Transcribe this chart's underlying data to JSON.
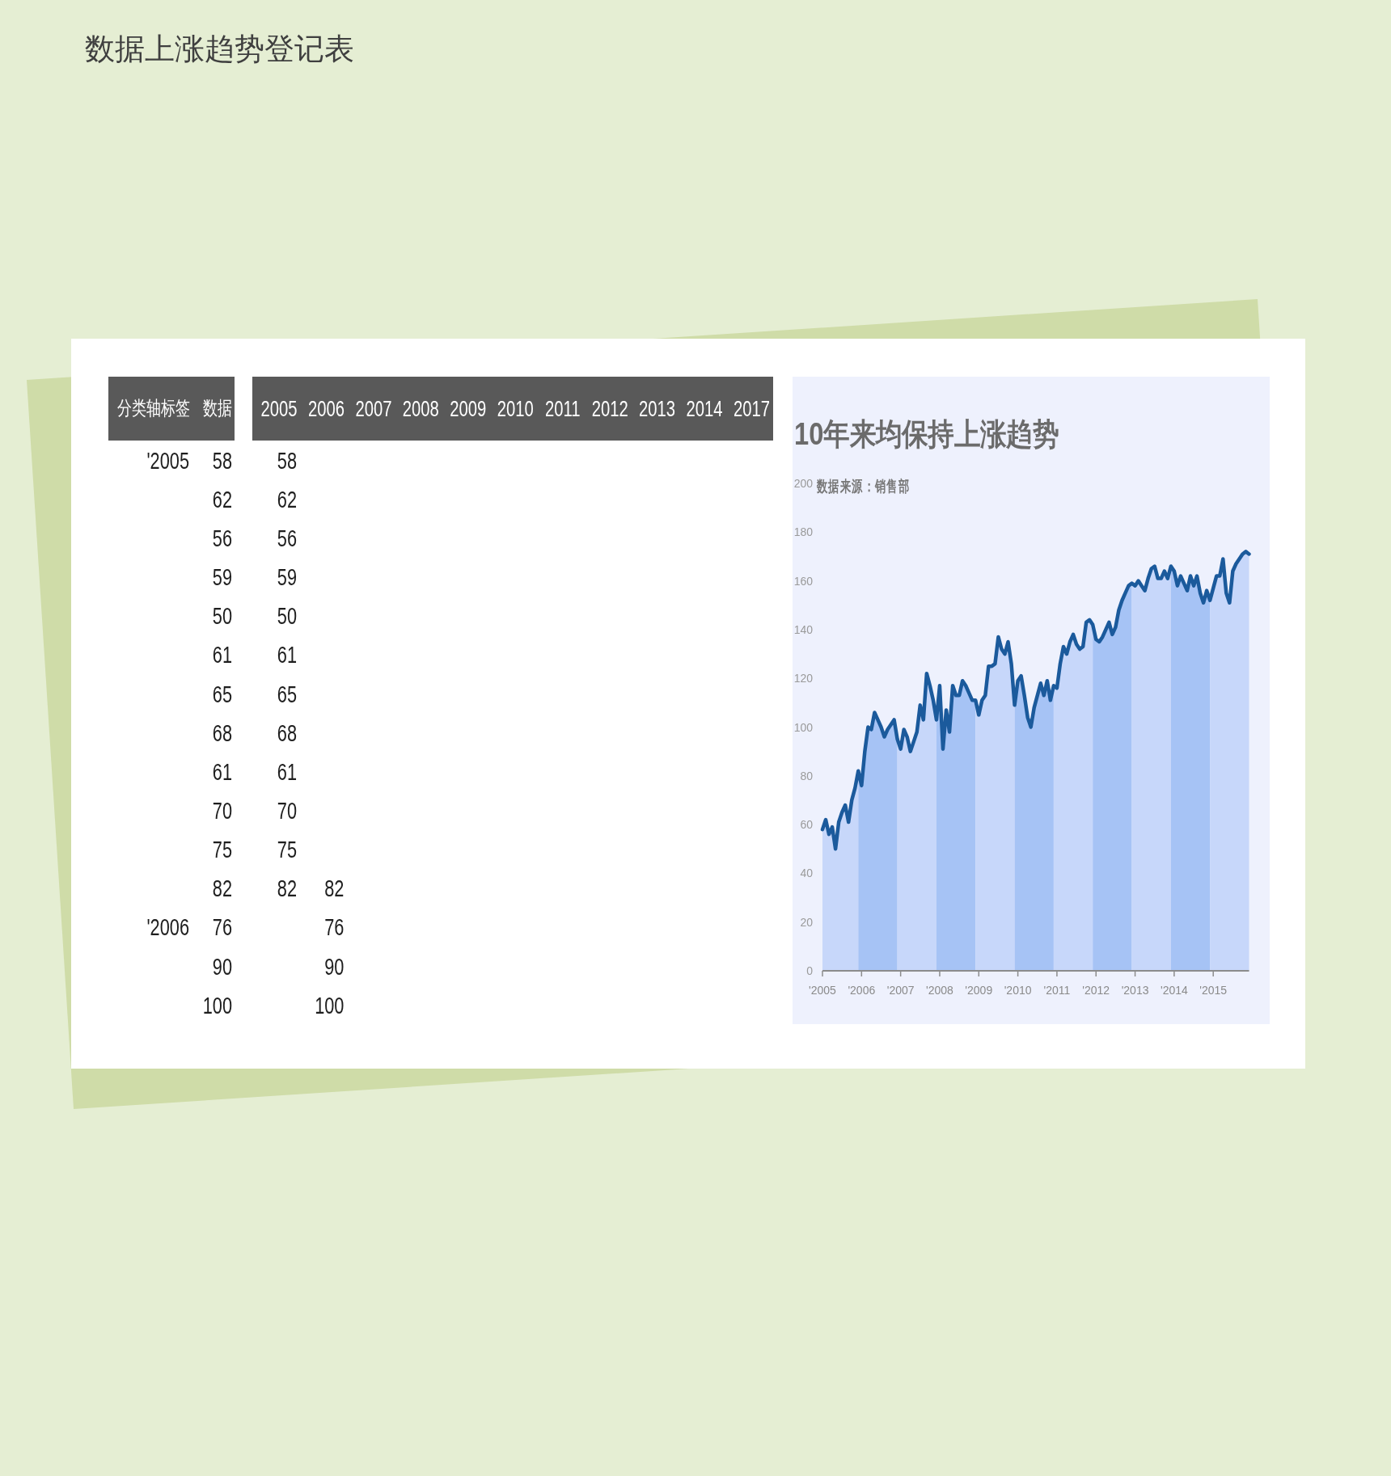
{
  "chart_data": [
    {
      "type": "heatmap",
      "title": "数据上涨趋势登记表",
      "ylabel": "分类轴标签",
      "categories": [
        "数据"
      ],
      "y_categories": [
        "'2005",
        null,
        null,
        null,
        null,
        null,
        null,
        null,
        null,
        null,
        null,
        null,
        "'2006",
        null,
        null
      ],
      "data_labels": true,
      "cells": [
        [
          58
        ],
        [
          62
        ],
        [
          56
        ],
        [
          59
        ],
        [
          50
        ],
        [
          61
        ],
        [
          65
        ],
        [
          68
        ],
        [
          61
        ],
        [
          70
        ],
        [
          75
        ],
        [
          82
        ],
        [
          76
        ],
        [
          90
        ],
        [
          100
        ]
      ]
    },
    {
      "type": "heatmap",
      "categories": [
        "2005",
        "2006",
        "2007",
        "2008",
        "2009",
        "2010",
        "2011",
        "2012",
        "2013",
        "2014",
        "2017"
      ],
      "y_categories": [
        null,
        null,
        null,
        null,
        null,
        null,
        null,
        null,
        null,
        null,
        null,
        null,
        null,
        null,
        null
      ],
      "data_labels": true,
      "cells": [
        [
          58,
          null,
          null,
          null,
          null,
          null,
          null,
          null,
          null,
          null,
          null
        ],
        [
          62,
          null,
          null,
          null,
          null,
          null,
          null,
          null,
          null,
          null,
          null
        ],
        [
          56,
          null,
          null,
          null,
          null,
          null,
          null,
          null,
          null,
          null,
          null
        ],
        [
          59,
          null,
          null,
          null,
          null,
          null,
          null,
          null,
          null,
          null,
          null
        ],
        [
          50,
          null,
          null,
          null,
          null,
          null,
          null,
          null,
          null,
          null,
          null
        ],
        [
          61,
          null,
          null,
          null,
          null,
          null,
          null,
          null,
          null,
          null,
          null
        ],
        [
          65,
          null,
          null,
          null,
          null,
          null,
          null,
          null,
          null,
          null,
          null
        ],
        [
          68,
          null,
          null,
          null,
          null,
          null,
          null,
          null,
          null,
          null,
          null
        ],
        [
          61,
          null,
          null,
          null,
          null,
          null,
          null,
          null,
          null,
          null,
          null
        ],
        [
          70,
          null,
          null,
          null,
          null,
          null,
          null,
          null,
          null,
          null,
          null
        ],
        [
          75,
          null,
          null,
          null,
          null,
          null,
          null,
          null,
          null,
          null,
          null
        ],
        [
          82,
          82,
          null,
          null,
          null,
          null,
          null,
          null,
          null,
          null,
          null
        ],
        [
          null,
          76,
          null,
          null,
          null,
          null,
          null,
          null,
          null,
          null,
          null
        ],
        [
          null,
          90,
          null,
          null,
          null,
          null,
          null,
          null,
          null,
          null,
          null
        ],
        [
          null,
          100,
          null,
          null,
          null,
          null,
          null,
          null,
          null,
          null,
          null
        ]
      ]
    },
    {
      "type": "area",
      "title": "10年来均保持上涨趋势",
      "annotations": [
        "数据来源：销售部"
      ],
      "categories": [
        "'2005",
        null,
        null,
        null,
        null,
        null,
        null,
        null,
        null,
        null,
        null,
        null,
        "'2006",
        null,
        null,
        null,
        null,
        null,
        null,
        null,
        null,
        null,
        null,
        null,
        "'2007",
        null,
        null,
        null,
        null,
        null,
        null,
        null,
        null,
        null,
        null,
        null,
        "'2008",
        null,
        null,
        null,
        null,
        null,
        null,
        null,
        null,
        null,
        null,
        null,
        "'2009",
        null,
        null,
        null,
        null,
        null,
        null,
        null,
        null,
        null,
        null,
        null,
        "'2010",
        null,
        null,
        null,
        null,
        null,
        null,
        null,
        null,
        null,
        null,
        null,
        "'2011",
        null,
        null,
        null,
        null,
        null,
        null,
        null,
        null,
        null,
        null,
        null,
        "'2012",
        null,
        null,
        null,
        null,
        null,
        null,
        null,
        null,
        null,
        null,
        null,
        "'2013",
        null,
        null,
        null,
        null,
        null,
        null,
        null,
        null,
        null,
        null,
        null,
        "'2014",
        null,
        null,
        null,
        null,
        null,
        null,
        null,
        null,
        null,
        null,
        null,
        "'2015",
        null,
        null,
        null,
        null,
        null,
        null,
        null,
        null,
        null,
        null,
        null
      ],
      "ylim": [
        0,
        200
      ],
      "yticks": [
        0,
        20,
        40,
        60,
        80,
        100,
        120,
        140,
        160,
        180,
        200
      ],
      "series": [
        {
          "color": "#c7d7fa",
          "values": [
            58,
            62,
            56,
            59,
            50,
            61,
            65,
            68,
            61,
            70,
            75,
            82,
            null,
            null,
            null,
            null,
            null,
            null,
            null,
            null,
            null,
            null,
            null,
            null,
            null,
            null,
            null,
            null,
            null,
            null,
            null,
            null,
            null,
            null,
            null,
            null,
            null,
            null,
            null,
            null,
            null,
            null,
            null,
            null,
            null,
            null,
            null,
            null,
            null,
            null,
            null,
            null,
            null,
            null,
            null,
            null,
            null,
            null,
            null,
            null,
            null,
            null,
            null,
            null,
            null,
            null,
            null,
            null,
            null,
            null,
            null,
            null,
            null,
            null,
            null,
            null,
            null,
            null,
            null,
            null,
            null,
            null,
            null,
            null,
            null,
            null,
            null,
            null,
            null,
            null,
            null,
            null,
            null,
            null,
            null,
            null,
            null,
            null,
            null,
            null,
            null,
            null,
            null,
            null,
            null,
            null,
            null,
            null,
            null,
            null,
            null,
            null,
            null,
            null,
            null,
            null,
            null,
            null,
            null,
            null,
            null,
            null,
            null,
            null,
            null,
            null,
            null,
            null,
            null,
            null,
            null,
            null
          ]
        },
        {
          "color": "#a6c3f5",
          "values": [
            null,
            null,
            null,
            null,
            null,
            null,
            null,
            null,
            null,
            null,
            null,
            82,
            76,
            90,
            100,
            99,
            106,
            103,
            100,
            96,
            99,
            101,
            103,
            95,
            null,
            null,
            null,
            null,
            null,
            null,
            null,
            null,
            null,
            null,
            null,
            null,
            null,
            null,
            null,
            null,
            null,
            null,
            null,
            null,
            null,
            null,
            null,
            null,
            null,
            null,
            null,
            null,
            null,
            null,
            null,
            null,
            null,
            null,
            null,
            null,
            null,
            null,
            null,
            null,
            null,
            null,
            null,
            null,
            null,
            null,
            null,
            null,
            null,
            null,
            null,
            null,
            null,
            null,
            null,
            null,
            null,
            null,
            null,
            null,
            null,
            null,
            null,
            null,
            null,
            null,
            null,
            null,
            null,
            null,
            null,
            null,
            null,
            null,
            null,
            null,
            null,
            null,
            null,
            null,
            null,
            null,
            null,
            null,
            null,
            null,
            null,
            null,
            null,
            null,
            null,
            null,
            null,
            null,
            null,
            null,
            null,
            null,
            null,
            null,
            null,
            null,
            null,
            null,
            null,
            null,
            null,
            null
          ]
        },
        {
          "color": "#c7d7fa",
          "values": [
            null,
            null,
            null,
            null,
            null,
            null,
            null,
            null,
            null,
            null,
            null,
            null,
            null,
            null,
            null,
            null,
            null,
            null,
            null,
            null,
            null,
            null,
            null,
            95,
            91,
            99,
            96,
            90,
            94,
            98,
            109,
            103,
            122,
            117,
            111,
            103,
            null,
            null,
            null,
            null,
            null,
            null,
            null,
            null,
            null,
            null,
            null,
            null,
            null,
            null,
            null,
            null,
            null,
            null,
            null,
            null,
            null,
            null,
            null,
            null,
            null,
            null,
            null,
            null,
            null,
            null,
            null,
            null,
            null,
            null,
            null,
            null,
            null,
            null,
            null,
            null,
            null,
            null,
            null,
            null,
            null,
            null,
            null,
            null,
            null,
            null,
            null,
            null,
            null,
            null,
            null,
            null,
            null,
            null,
            null,
            null,
            null,
            null,
            null,
            null,
            null,
            null,
            null,
            null,
            null,
            null,
            null,
            null,
            null,
            null,
            null,
            null,
            null,
            null,
            null,
            null,
            null,
            null,
            null,
            null,
            null,
            null,
            null,
            null,
            null,
            null,
            null,
            null,
            null,
            null,
            null,
            null
          ]
        },
        {
          "color": "#a6c3f5",
          "values": [
            null,
            null,
            null,
            null,
            null,
            null,
            null,
            null,
            null,
            null,
            null,
            null,
            null,
            null,
            null,
            null,
            null,
            null,
            null,
            null,
            null,
            null,
            null,
            null,
            null,
            null,
            null,
            null,
            null,
            null,
            null,
            null,
            null,
            null,
            null,
            103,
            117,
            91,
            107,
            98,
            117,
            113,
            113,
            119,
            117,
            114,
            111,
            111,
            null,
            null,
            null,
            null,
            null,
            null,
            null,
            null,
            null,
            null,
            null,
            null,
            null,
            null,
            null,
            null,
            null,
            null,
            null,
            null,
            null,
            null,
            null,
            null,
            null,
            null,
            null,
            null,
            null,
            null,
            null,
            null,
            null,
            null,
            null,
            null,
            null,
            null,
            null,
            null,
            null,
            null,
            null,
            null,
            null,
            null,
            null,
            null,
            null,
            null,
            null,
            null,
            null,
            null,
            null,
            null,
            null,
            null,
            null,
            null,
            null,
            null,
            null,
            null,
            null,
            null,
            null,
            null,
            null,
            null,
            null,
            null,
            null,
            null,
            null,
            null,
            null,
            null,
            null,
            null,
            null,
            null,
            null,
            null
          ]
        },
        {
          "color": "#c7d7fa",
          "values": [
            null,
            null,
            null,
            null,
            null,
            null,
            null,
            null,
            null,
            null,
            null,
            null,
            null,
            null,
            null,
            null,
            null,
            null,
            null,
            null,
            null,
            null,
            null,
            null,
            null,
            null,
            null,
            null,
            null,
            null,
            null,
            null,
            null,
            null,
            null,
            null,
            null,
            null,
            null,
            null,
            null,
            null,
            null,
            null,
            null,
            null,
            null,
            111,
            105,
            111,
            113,
            125,
            125,
            126,
            137,
            132,
            130,
            135,
            126,
            109,
            null,
            null,
            null,
            null,
            null,
            null,
            null,
            null,
            null,
            null,
            null,
            null,
            null,
            null,
            null,
            null,
            null,
            null,
            null,
            null,
            null,
            null,
            null,
            null,
            null,
            null,
            null,
            null,
            null,
            null,
            null,
            null,
            null,
            null,
            null,
            null,
            null,
            null,
            null,
            null,
            null,
            null,
            null,
            null,
            null,
            null,
            null,
            null,
            null,
            null,
            null,
            null,
            null,
            null,
            null,
            null,
            null,
            null,
            null,
            null,
            null,
            null,
            null,
            null,
            null,
            null,
            null,
            null,
            null,
            null,
            null,
            null
          ]
        },
        {
          "color": "#a6c3f5",
          "values": [
            null,
            null,
            null,
            null,
            null,
            null,
            null,
            null,
            null,
            null,
            null,
            null,
            null,
            null,
            null,
            null,
            null,
            null,
            null,
            null,
            null,
            null,
            null,
            null,
            null,
            null,
            null,
            null,
            null,
            null,
            null,
            null,
            null,
            null,
            null,
            null,
            null,
            null,
            null,
            null,
            null,
            null,
            null,
            null,
            null,
            null,
            null,
            null,
            null,
            null,
            null,
            null,
            null,
            null,
            null,
            null,
            null,
            null,
            null,
            109,
            119,
            121,
            113,
            104,
            100,
            108,
            113,
            118,
            113,
            119,
            111,
            117,
            null,
            null,
            null,
            null,
            null,
            null,
            null,
            null,
            null,
            null,
            null,
            null,
            null,
            null,
            null,
            null,
            null,
            null,
            null,
            null,
            null,
            null,
            null,
            null,
            null,
            null,
            null,
            null,
            null,
            null,
            null,
            null,
            null,
            null,
            null,
            null,
            null,
            null,
            null,
            null,
            null,
            null,
            null,
            null,
            null,
            null,
            null,
            null,
            null,
            null,
            null,
            null,
            null,
            null,
            null,
            null,
            null,
            null,
            null,
            null
          ]
        },
        {
          "color": "#c7d7fa",
          "values": [
            null,
            null,
            null,
            null,
            null,
            null,
            null,
            null,
            null,
            null,
            null,
            null,
            null,
            null,
            null,
            null,
            null,
            null,
            null,
            null,
            null,
            null,
            null,
            null,
            null,
            null,
            null,
            null,
            null,
            null,
            null,
            null,
            null,
            null,
            null,
            null,
            null,
            null,
            null,
            null,
            null,
            null,
            null,
            null,
            null,
            null,
            null,
            null,
            null,
            null,
            null,
            null,
            null,
            null,
            null,
            null,
            null,
            null,
            null,
            null,
            null,
            null,
            null,
            null,
            null,
            null,
            null,
            null,
            null,
            null,
            null,
            117,
            116,
            126,
            133,
            130,
            135,
            138,
            134,
            132,
            133,
            143,
            144,
            142,
            null,
            null,
            null,
            null,
            null,
            null,
            null,
            null,
            null,
            null,
            null,
            null,
            null,
            null,
            null,
            null,
            null,
            null,
            null,
            null,
            null,
            null,
            null,
            null,
            null,
            null,
            null,
            null,
            null,
            null,
            null,
            null,
            null,
            null,
            null,
            null,
            null,
            null,
            null,
            null,
            null,
            null,
            null,
            null,
            null,
            null,
            null,
            null
          ]
        },
        {
          "color": "#a6c3f5",
          "values": [
            null,
            null,
            null,
            null,
            null,
            null,
            null,
            null,
            null,
            null,
            null,
            null,
            null,
            null,
            null,
            null,
            null,
            null,
            null,
            null,
            null,
            null,
            null,
            null,
            null,
            null,
            null,
            null,
            null,
            null,
            null,
            null,
            null,
            null,
            null,
            null,
            null,
            null,
            null,
            null,
            null,
            null,
            null,
            null,
            null,
            null,
            null,
            null,
            null,
            null,
            null,
            null,
            null,
            null,
            null,
            null,
            null,
            null,
            null,
            null,
            null,
            null,
            null,
            null,
            null,
            null,
            null,
            null,
            null,
            null,
            null,
            null,
            null,
            null,
            null,
            null,
            null,
            null,
            null,
            null,
            null,
            null,
            null,
            142,
            136,
            135,
            137,
            140,
            143,
            138,
            141,
            148,
            152,
            155,
            158,
            159,
            null,
            null,
            null,
            null,
            null,
            null,
            null,
            null,
            null,
            null,
            null,
            null,
            null,
            null,
            null,
            null,
            null,
            null,
            null,
            null,
            null,
            null,
            null,
            null,
            null,
            null,
            null,
            null,
            null,
            null,
            null,
            null,
            null,
            null,
            null,
            null
          ]
        },
        {
          "color": "#c7d7fa",
          "values": [
            null,
            null,
            null,
            null,
            null,
            null,
            null,
            null,
            null,
            null,
            null,
            null,
            null,
            null,
            null,
            null,
            null,
            null,
            null,
            null,
            null,
            null,
            null,
            null,
            null,
            null,
            null,
            null,
            null,
            null,
            null,
            null,
            null,
            null,
            null,
            null,
            null,
            null,
            null,
            null,
            null,
            null,
            null,
            null,
            null,
            null,
            null,
            null,
            null,
            null,
            null,
            null,
            null,
            null,
            null,
            null,
            null,
            null,
            null,
            null,
            null,
            null,
            null,
            null,
            null,
            null,
            null,
            null,
            null,
            null,
            null,
            null,
            null,
            null,
            null,
            null,
            null,
            null,
            null,
            null,
            null,
            null,
            null,
            null,
            null,
            null,
            null,
            null,
            null,
            null,
            null,
            null,
            null,
            null,
            null,
            159,
            158,
            160,
            158,
            156,
            161,
            165,
            166,
            161,
            161,
            164,
            161,
            166,
            null,
            null,
            null,
            null,
            null,
            null,
            null,
            null,
            null,
            null,
            null,
            null,
            null,
            null,
            null,
            null,
            null,
            null,
            null,
            null,
            null,
            null,
            null,
            null
          ]
        },
        {
          "color": "#a6c3f5",
          "values": [
            null,
            null,
            null,
            null,
            null,
            null,
            null,
            null,
            null,
            null,
            null,
            null,
            null,
            null,
            null,
            null,
            null,
            null,
            null,
            null,
            null,
            null,
            null,
            null,
            null,
            null,
            null,
            null,
            null,
            null,
            null,
            null,
            null,
            null,
            null,
            null,
            null,
            null,
            null,
            null,
            null,
            null,
            null,
            null,
            null,
            null,
            null,
            null,
            null,
            null,
            null,
            null,
            null,
            null,
            null,
            null,
            null,
            null,
            null,
            null,
            null,
            null,
            null,
            null,
            null,
            null,
            null,
            null,
            null,
            null,
            null,
            null,
            null,
            null,
            null,
            null,
            null,
            null,
            null,
            null,
            null,
            null,
            null,
            null,
            null,
            null,
            null,
            null,
            null,
            null,
            null,
            null,
            null,
            null,
            null,
            null,
            null,
            null,
            null,
            null,
            null,
            null,
            null,
            null,
            null,
            null,
            null,
            166,
            164,
            158,
            162,
            159,
            156,
            162,
            158,
            162,
            155,
            151,
            156,
            152,
            null,
            null,
            null,
            null,
            null,
            null,
            null,
            null,
            null,
            null,
            null,
            null
          ]
        },
        {
          "color": "#c7d7fa",
          "values": [
            null,
            null,
            null,
            null,
            null,
            null,
            null,
            null,
            null,
            null,
            null,
            null,
            null,
            null,
            null,
            null,
            null,
            null,
            null,
            null,
            null,
            null,
            null,
            null,
            null,
            null,
            null,
            null,
            null,
            null,
            null,
            null,
            null,
            null,
            null,
            null,
            null,
            null,
            null,
            null,
            null,
            null,
            null,
            null,
            null,
            null,
            null,
            null,
            null,
            null,
            null,
            null,
            null,
            null,
            null,
            null,
            null,
            null,
            null,
            null,
            null,
            null,
            null,
            null,
            null,
            null,
            null,
            null,
            null,
            null,
            null,
            null,
            null,
            null,
            null,
            null,
            null,
            null,
            null,
            null,
            null,
            null,
            null,
            null,
            null,
            null,
            null,
            null,
            null,
            null,
            null,
            null,
            null,
            null,
            null,
            null,
            null,
            null,
            null,
            null,
            null,
            null,
            null,
            null,
            null,
            null,
            null,
            null,
            null,
            null,
            null,
            null,
            null,
            null,
            null,
            null,
            null,
            null,
            null,
            152,
            157,
            162,
            162,
            169,
            155,
            151,
            164,
            167,
            169,
            171,
            172,
            171
          ]
        },
        {
          "type": "line",
          "color": "#1b5a9c",
          "values": [
            58,
            62,
            56,
            59,
            50,
            61,
            65,
            68,
            61,
            70,
            75,
            82,
            76,
            90,
            100,
            99,
            106,
            103,
            100,
            96,
            99,
            101,
            103,
            95,
            91,
            99,
            96,
            90,
            94,
            98,
            109,
            103,
            122,
            117,
            111,
            103,
            117,
            91,
            107,
            98,
            117,
            113,
            113,
            119,
            117,
            114,
            111,
            111,
            105,
            111,
            113,
            125,
            125,
            126,
            137,
            132,
            130,
            135,
            126,
            109,
            119,
            121,
            113,
            104,
            100,
            108,
            113,
            118,
            113,
            119,
            111,
            117,
            116,
            126,
            133,
            130,
            135,
            138,
            134,
            132,
            133,
            143,
            144,
            142,
            136,
            135,
            137,
            140,
            143,
            138,
            141,
            148,
            152,
            155,
            158,
            159,
            158,
            160,
            158,
            156,
            161,
            165,
            166,
            161,
            161,
            164,
            161,
            166,
            164,
            158,
            162,
            159,
            156,
            162,
            158,
            162,
            155,
            151,
            156,
            152,
            157,
            162,
            162,
            169,
            155,
            151,
            164,
            167,
            169,
            171,
            172,
            171
          ]
        }
      ]
    }
  ]
}
